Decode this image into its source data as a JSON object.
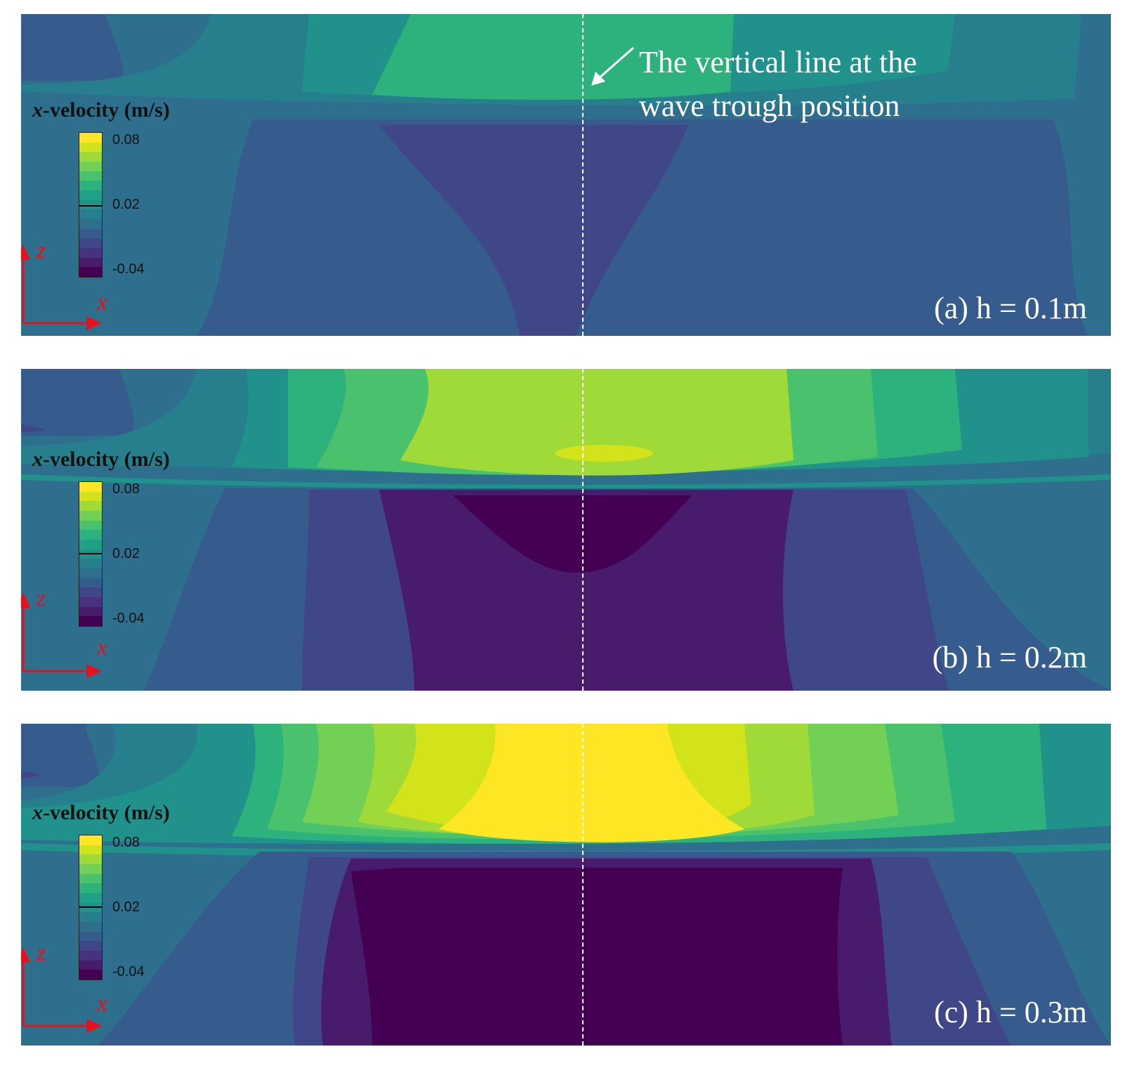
{
  "annotation": {
    "line1": "The vertical line at the",
    "line2": "wave trough position"
  },
  "colorbar": {
    "title_var": "x",
    "title_rest": "-velocity (m/s)",
    "ticks": [
      "0.08",
      "0.02",
      "-0.04"
    ],
    "colors": [
      "#fde725",
      "#d2e21b",
      "#a0da39",
      "#73d056",
      "#4ac16d",
      "#2db27d",
      "#1fa187",
      "#21918c",
      "#277f8e",
      "#2e6f8e",
      "#365c8d",
      "#3f4788",
      "#46327e",
      "#481b6d",
      "#440154"
    ]
  },
  "axes": {
    "z_label": "z",
    "x_label": "x",
    "arrow_color": "#e8101a"
  },
  "chart_data": [
    {
      "type": "heatmap",
      "title": "(a) h = 0.1m",
      "colorbar_label": "x-velocity (m/s)",
      "colorbar_range": [
        -0.04,
        0.08
      ],
      "colorbar_ticks": [
        0.08,
        0.02,
        -0.04
      ],
      "axes": [
        "x",
        "z"
      ],
      "description_values": {
        "max_near_surface": 0.04,
        "min_below_trough": -0.02
      }
    },
    {
      "type": "heatmap",
      "title": "(b) h = 0.2m",
      "colorbar_label": "x-velocity (m/s)",
      "colorbar_range": [
        -0.04,
        0.08
      ],
      "colorbar_ticks": [
        0.08,
        0.02,
        -0.04
      ],
      "axes": [
        "x",
        "z"
      ],
      "description_values": {
        "max_near_surface": 0.07,
        "min_below_trough": -0.04
      }
    },
    {
      "type": "heatmap",
      "title": "(c) h = 0.3m",
      "colorbar_label": "x-velocity (m/s)",
      "colorbar_range": [
        -0.04,
        0.08
      ],
      "colorbar_ticks": [
        0.08,
        0.02,
        -0.04
      ],
      "axes": [
        "x",
        "z"
      ],
      "description_values": {
        "max_near_surface": 0.08,
        "min_below_trough": -0.04
      }
    }
  ]
}
